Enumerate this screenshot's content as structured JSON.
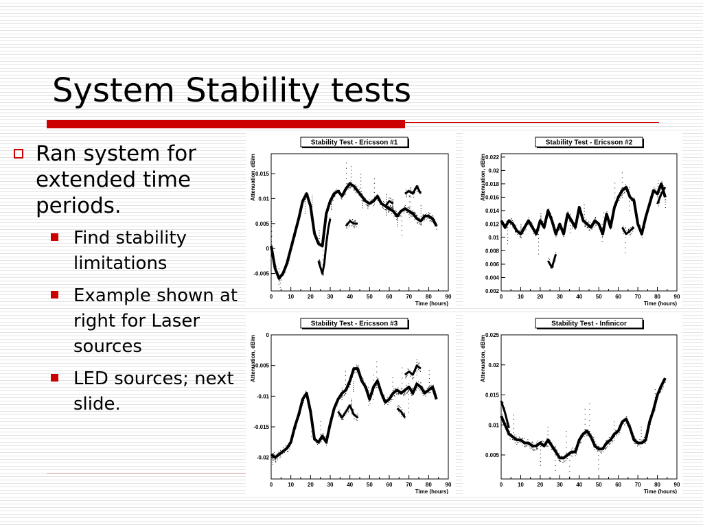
{
  "slide": {
    "title": "System Stability tests",
    "bullet_main": "Ran system for extended time periods.",
    "sub_bullets": [
      "Find stability limitations",
      "Example shown at right for Laser sources",
      "LED sources; next slide."
    ]
  },
  "colors": {
    "accent": "#cc0000",
    "trace": "#000000"
  },
  "chart_data": [
    {
      "type": "scatter",
      "title": "Stability Test - Ericsson #1",
      "xlabel": "Time (hours)",
      "ylabel": "Attenuation, dB/m",
      "xlim": [
        0,
        90
      ],
      "ylim": [
        -0.0085,
        0.019
      ],
      "xticks": [
        0,
        10,
        20,
        30,
        40,
        50,
        60,
        70,
        80,
        90
      ],
      "yticks": [
        -0.005,
        0,
        0.005,
        0.01,
        0.015
      ],
      "ytick_labels": [
        "-0.005",
        "0",
        "0.005",
        "0.01",
        "0.015"
      ],
      "series": [
        {
          "x": [
            0,
            2,
            4,
            6,
            8,
            10,
            12,
            14,
            16,
            18,
            20,
            22,
            24,
            26,
            28,
            30,
            32,
            34,
            36,
            38,
            40,
            42,
            44,
            46,
            48,
            50,
            52,
            54,
            56,
            58,
            60,
            62,
            64,
            66,
            68,
            70,
            72,
            74,
            76,
            78,
            80,
            82,
            84
          ],
          "y": [
            0.0005,
            -0.004,
            -0.006,
            -0.005,
            -0.003,
            0.0,
            0.003,
            0.006,
            0.0095,
            0.011,
            0.0085,
            0.003,
            0.001,
            0.0005,
            0.007,
            0.0095,
            0.011,
            0.0115,
            0.0105,
            0.012,
            0.013,
            0.0125,
            0.0115,
            0.0105,
            0.0095,
            0.009,
            0.0095,
            0.0105,
            0.009,
            0.0085,
            0.008,
            0.0075,
            0.0065,
            0.0075,
            0.008,
            0.0075,
            0.007,
            0.006,
            0.0055,
            0.0065,
            0.0065,
            0.006,
            0.0045
          ]
        },
        {
          "x": [
            24,
            26,
            27,
            28,
            29,
            30
          ],
          "y": [
            -0.0025,
            -0.005,
            -0.003,
            0.001,
            0.004,
            0.006
          ]
        },
        {
          "x": [
            38,
            40,
            42,
            44
          ],
          "y": [
            0.0045,
            0.0055,
            0.005,
            0.005
          ]
        },
        {
          "x": [
            58,
            60,
            62
          ],
          "y": [
            0.0085,
            0.0095,
            0.009
          ]
        },
        {
          "x": [
            68,
            70,
            72,
            74,
            76
          ],
          "y": [
            0.011,
            0.0115,
            0.011,
            0.0125,
            0.011
          ]
        }
      ]
    },
    {
      "type": "scatter",
      "title": "Stability Test - Ericsson #2",
      "xlabel": "Time (hours)",
      "ylabel": "Attenuation, dB/m",
      "xlim": [
        0,
        90
      ],
      "ylim": [
        0.002,
        0.0225
      ],
      "xticks": [
        0,
        10,
        20,
        30,
        40,
        50,
        60,
        70,
        80,
        90
      ],
      "yticks": [
        0.002,
        0.004,
        0.006,
        0.008,
        0.01,
        0.012,
        0.014,
        0.016,
        0.018,
        0.02,
        0.022
      ],
      "ytick_labels": [
        "0.002",
        "0.004",
        "0.006",
        "0.008",
        "0.01",
        "0.012",
        "0.014",
        "0.016",
        "0.018",
        "0.02",
        "0.022"
      ],
      "series": [
        {
          "x": [
            0,
            2,
            4,
            6,
            8,
            10,
            12,
            14,
            16,
            18,
            20,
            22,
            24,
            26,
            28,
            30,
            32,
            34,
            36,
            38,
            40,
            42,
            44,
            46,
            48,
            50,
            52,
            54,
            56,
            58,
            60,
            62,
            64,
            66,
            68,
            70,
            72,
            74,
            76,
            78,
            80,
            82,
            84
          ],
          "y": [
            0.0125,
            0.0115,
            0.0125,
            0.012,
            0.011,
            0.0105,
            0.0115,
            0.0125,
            0.0115,
            0.0105,
            0.0125,
            0.0115,
            0.014,
            0.0125,
            0.0105,
            0.012,
            0.0105,
            0.0135,
            0.0125,
            0.0115,
            0.0145,
            0.0125,
            0.012,
            0.0115,
            0.0125,
            0.012,
            0.0105,
            0.0135,
            0.0115,
            0.0145,
            0.016,
            0.017,
            0.0175,
            0.016,
            0.0155,
            0.012,
            0.0105,
            0.013,
            0.015,
            0.017,
            0.0165,
            0.018,
            0.016
          ]
        },
        {
          "x": [
            24,
            26,
            28
          ],
          "y": [
            0.0065,
            0.0055,
            0.0075
          ]
        },
        {
          "x": [
            62,
            64,
            66,
            68
          ],
          "y": [
            0.0115,
            0.0105,
            0.011,
            0.0115
          ]
        },
        {
          "x": [
            80,
            82,
            84
          ],
          "y": [
            0.015,
            0.0165,
            0.0175
          ]
        }
      ]
    },
    {
      "type": "scatter",
      "title": "Stability Test - Ericsson #3",
      "xlabel": "Time (hours)",
      "ylabel": "Attenuation, dB/m",
      "xlim": [
        0,
        90
      ],
      "ylim": [
        -0.0235,
        0.0
      ],
      "xticks": [
        0,
        10,
        20,
        30,
        40,
        50,
        60,
        70,
        80,
        90
      ],
      "yticks": [
        -0.02,
        -0.015,
        -0.01,
        -0.005,
        0
      ],
      "ytick_labels": [
        "-0.02",
        "-0.015",
        "-0.01",
        "-0.005",
        "0"
      ],
      "series": [
        {
          "x": [
            0,
            2,
            4,
            6,
            8,
            10,
            12,
            14,
            16,
            18,
            20,
            22,
            24,
            26,
            28,
            30,
            32,
            34,
            36,
            38,
            40,
            42,
            44,
            46,
            48,
            50,
            52,
            54,
            56,
            58,
            60,
            62,
            64,
            66,
            68,
            70,
            72,
            74,
            76,
            78,
            80,
            82,
            84
          ],
          "y": [
            -0.0195,
            -0.02,
            -0.0195,
            -0.019,
            -0.0185,
            -0.0175,
            -0.015,
            -0.013,
            -0.0105,
            -0.0095,
            -0.0125,
            -0.017,
            -0.0175,
            -0.0165,
            -0.0175,
            -0.0145,
            -0.012,
            -0.0105,
            -0.0095,
            -0.009,
            -0.0075,
            -0.0055,
            -0.0055,
            -0.0075,
            -0.0085,
            -0.0105,
            -0.0085,
            -0.0075,
            -0.0095,
            -0.011,
            -0.0105,
            -0.0095,
            -0.009,
            -0.0095,
            -0.009,
            -0.0085,
            -0.0095,
            -0.008,
            -0.0085,
            -0.0095,
            -0.009,
            -0.0085,
            -0.0105
          ]
        },
        {
          "x": [
            34,
            36,
            38,
            40,
            42,
            44
          ],
          "y": [
            -0.0125,
            -0.0135,
            -0.0125,
            -0.0115,
            -0.013,
            -0.0135
          ]
        },
        {
          "x": [
            64,
            66,
            68
          ],
          "y": [
            -0.012,
            -0.0125,
            -0.0135
          ]
        },
        {
          "x": [
            68,
            70,
            72,
            74,
            76
          ],
          "y": [
            -0.0065,
            -0.006,
            -0.0065,
            -0.005,
            -0.0055
          ]
        }
      ]
    },
    {
      "type": "scatter",
      "title": "Stability Test - Infinicor",
      "xlabel": "Time (hours)",
      "ylabel": "Attenuation, dB/m",
      "xlim": [
        0,
        90
      ],
      "ylim": [
        0.001,
        0.025
      ],
      "xticks": [
        0,
        10,
        20,
        30,
        40,
        50,
        60,
        70,
        80,
        90
      ],
      "yticks": [
        0.005,
        0.01,
        0.015,
        0.02,
        0.025
      ],
      "ytick_labels": [
        "0.005",
        "0.01",
        "0.015",
        "0.02",
        "0.025"
      ],
      "series": [
        {
          "x": [
            0,
            2,
            4,
            6,
            8,
            10,
            12,
            14,
            16,
            18,
            20,
            22,
            24,
            26,
            28,
            30,
            32,
            34,
            36,
            38,
            40,
            42,
            44,
            46,
            48,
            50,
            52,
            54,
            56,
            58,
            60,
            62,
            64,
            66,
            68,
            70,
            72,
            74,
            76,
            78,
            80,
            82,
            84
          ],
          "y": [
            0.0115,
            0.01,
            0.0085,
            0.008,
            0.0075,
            0.0075,
            0.007,
            0.007,
            0.0065,
            0.0065,
            0.007,
            0.0065,
            0.0075,
            0.0065,
            0.0055,
            0.0045,
            0.0045,
            0.005,
            0.0055,
            0.0055,
            0.0075,
            0.0085,
            0.009,
            0.008,
            0.0065,
            0.006,
            0.006,
            0.007,
            0.0075,
            0.0085,
            0.009,
            0.0105,
            0.011,
            0.0095,
            0.0075,
            0.007,
            0.007,
            0.0075,
            0.0105,
            0.0125,
            0.015,
            0.0165,
            0.0178
          ]
        },
        {
          "x": [
            0,
            2,
            4
          ],
          "y": [
            0.014,
            0.012,
            0.0095
          ]
        }
      ]
    }
  ]
}
